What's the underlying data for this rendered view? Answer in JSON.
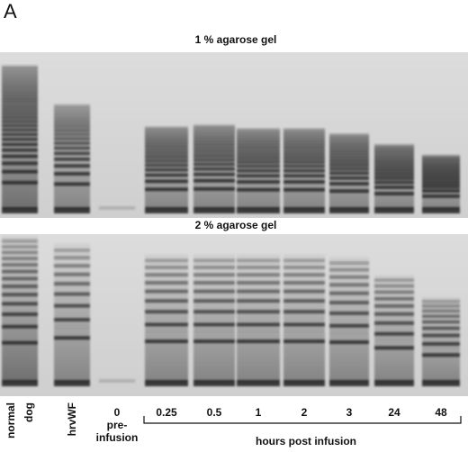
{
  "panel_label": "A",
  "gels": [
    {
      "title": "1 % agarose gel"
    },
    {
      "title": "2 % agarose gel"
    }
  ],
  "lanes": [
    {
      "lines": [
        "normal",
        "dog"
      ]
    },
    {
      "lines": [
        "hrvWF"
      ]
    },
    {
      "lines": [
        "0",
        "pre-",
        "infusion"
      ]
    },
    {
      "lines": [
        "0.25"
      ]
    },
    {
      "lines": [
        "0.5"
      ]
    },
    {
      "lines": [
        "1"
      ]
    },
    {
      "lines": [
        "2"
      ]
    },
    {
      "lines": [
        "3"
      ]
    },
    {
      "lines": [
        "24"
      ]
    },
    {
      "lines": [
        "48"
      ]
    }
  ],
  "time_axis": {
    "label": "hours post infusion"
  }
}
